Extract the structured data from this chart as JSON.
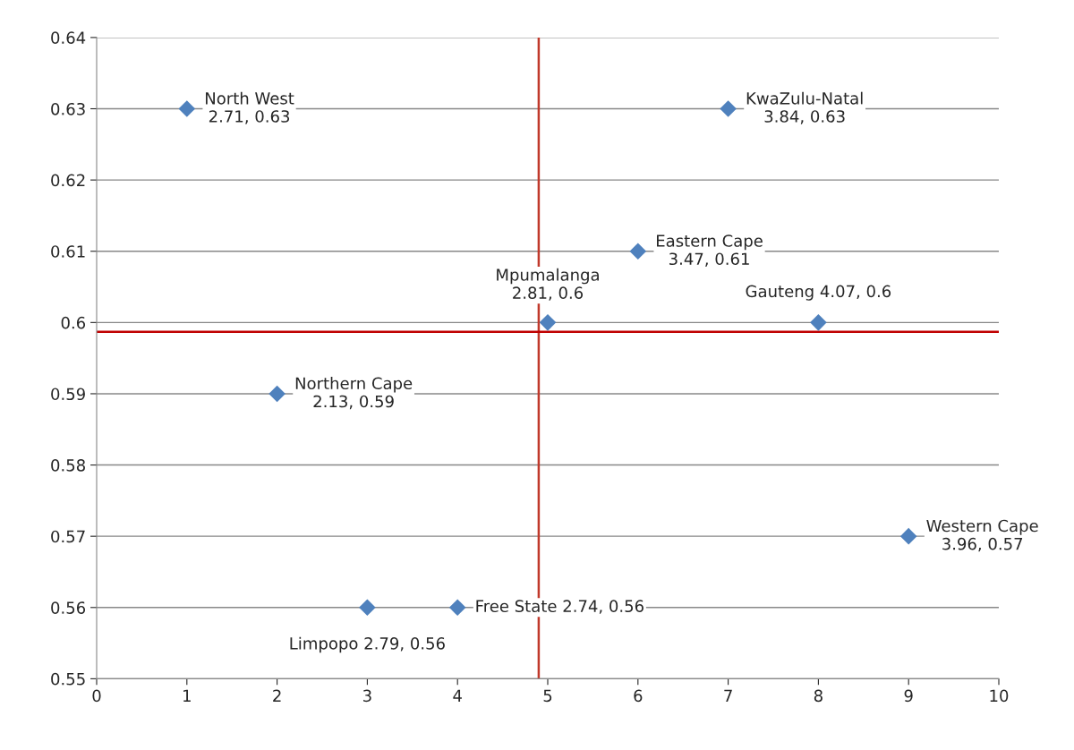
{
  "chart_data": {
    "type": "scatter",
    "x": [
      1,
      2,
      3,
      4,
      5,
      6,
      7,
      8,
      9
    ],
    "series": [
      {
        "color": "#4f81bd",
        "values": [
          0.63,
          0.59,
          0.56,
          0.56,
          0.6,
          0.61,
          0.63,
          0.6,
          0.57
        ]
      }
    ],
    "marker": "diamond",
    "grid": "y",
    "legend": false,
    "xlim": [
      0,
      10
    ],
    "xticks": [
      0,
      1,
      2,
      3,
      4,
      5,
      6,
      7,
      8,
      9,
      10
    ],
    "ylim": [
      0.55,
      0.64
    ],
    "yticks": [
      {
        "value": 0.55,
        "label": "0.55"
      },
      {
        "value": 0.56,
        "label": "0.56"
      },
      {
        "value": 0.57,
        "label": "0.57"
      },
      {
        "value": 0.58,
        "label": "0.58"
      },
      {
        "value": 0.59,
        "label": "0.59"
      },
      {
        "value": 0.6,
        "label": "0.6"
      },
      {
        "value": 0.61,
        "label": "0.61"
      },
      {
        "value": 0.62,
        "label": "0.62"
      },
      {
        "value": 0.63,
        "label": "0.63"
      },
      {
        "value": 0.64,
        "label": "0.64"
      }
    ],
    "ref_lines": [
      {
        "axis": "x",
        "value": 4.9,
        "color": "#c0392b"
      },
      {
        "axis": "y",
        "value": 0.5987,
        "color": "#c00000"
      }
    ],
    "annotations": [
      {
        "text": "North West\n2.71, 0.63",
        "x": 1,
        "y": 0.63
      },
      {
        "text": "Northern Cape\n2.13, 0.59",
        "x": 2,
        "y": 0.59
      },
      {
        "text": "Limpopo 2.79, 0.56",
        "x": 3,
        "y": 0.56
      },
      {
        "text": "Free State 2.74, 0.56",
        "x": 4,
        "y": 0.56
      },
      {
        "text": "Mpumalanga\n2.81, 0.6",
        "x": 5,
        "y": 0.6
      },
      {
        "text": "Eastern Cape\n3.47, 0.61",
        "x": 6,
        "y": 0.61
      },
      {
        "text": "KwaZulu-Natal\n3.84, 0.63",
        "x": 7,
        "y": 0.63
      },
      {
        "text": "Gauteng 4.07, 0.6",
        "x": 8,
        "y": 0.6
      },
      {
        "text": "Western Cape\n3.96, 0.57",
        "x": 9,
        "y": 0.57
      }
    ]
  }
}
